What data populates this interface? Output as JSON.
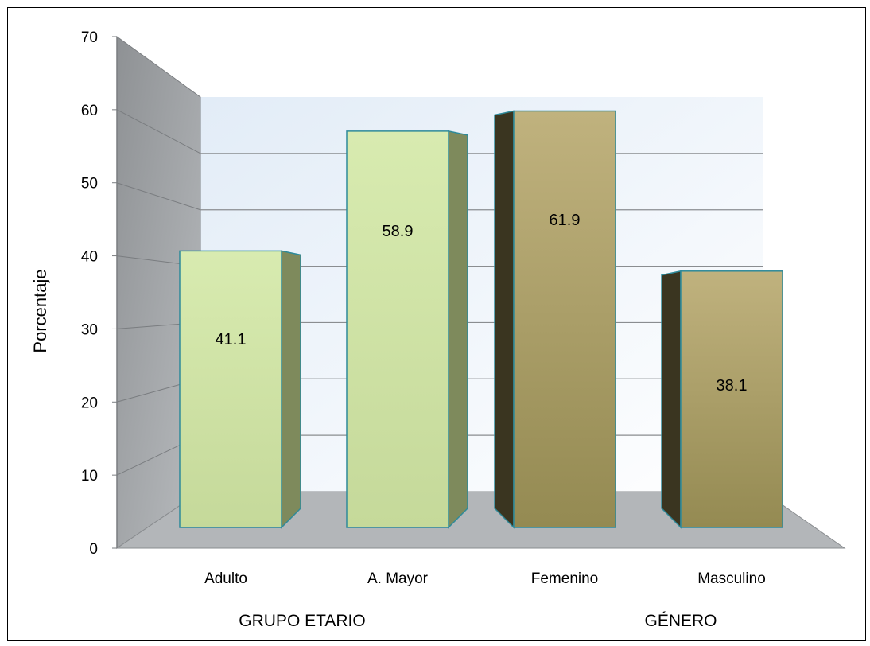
{
  "chart_data": {
    "type": "bar",
    "categories": [
      "Adulto",
      "A. Mayor",
      "Femenino",
      "Masculino"
    ],
    "values": [
      41.1,
      58.9,
      61.9,
      38.1
    ],
    "data_labels": [
      "41.1",
      "58.9",
      "61.9",
      "38.1"
    ],
    "groups": [
      {
        "label": "GRUPO ETARIO",
        "categories": [
          "Adulto",
          "A. Mayor"
        ]
      },
      {
        "label": "GÉNERO",
        "categories": [
          "Femenino",
          "Masculino"
        ]
      }
    ],
    "ylabel": "Porcentaje",
    "xlabel": "",
    "ylim": [
      0,
      70
    ],
    "yticks": [
      "0",
      "10",
      "20",
      "30",
      "40",
      "50",
      "60",
      "70"
    ],
    "grid": true,
    "three_d": true,
    "colors": {
      "group1_front": "#cfe3a0",
      "group1_side": "#7e8a5c",
      "group2_front": "#b0a06a",
      "group2_side": "#3a3520",
      "bar_border": "#2e8a9a",
      "back_wall": "#e8f0f8",
      "side_wall": "#9a9da0",
      "floor": "#b4b7ba"
    }
  }
}
